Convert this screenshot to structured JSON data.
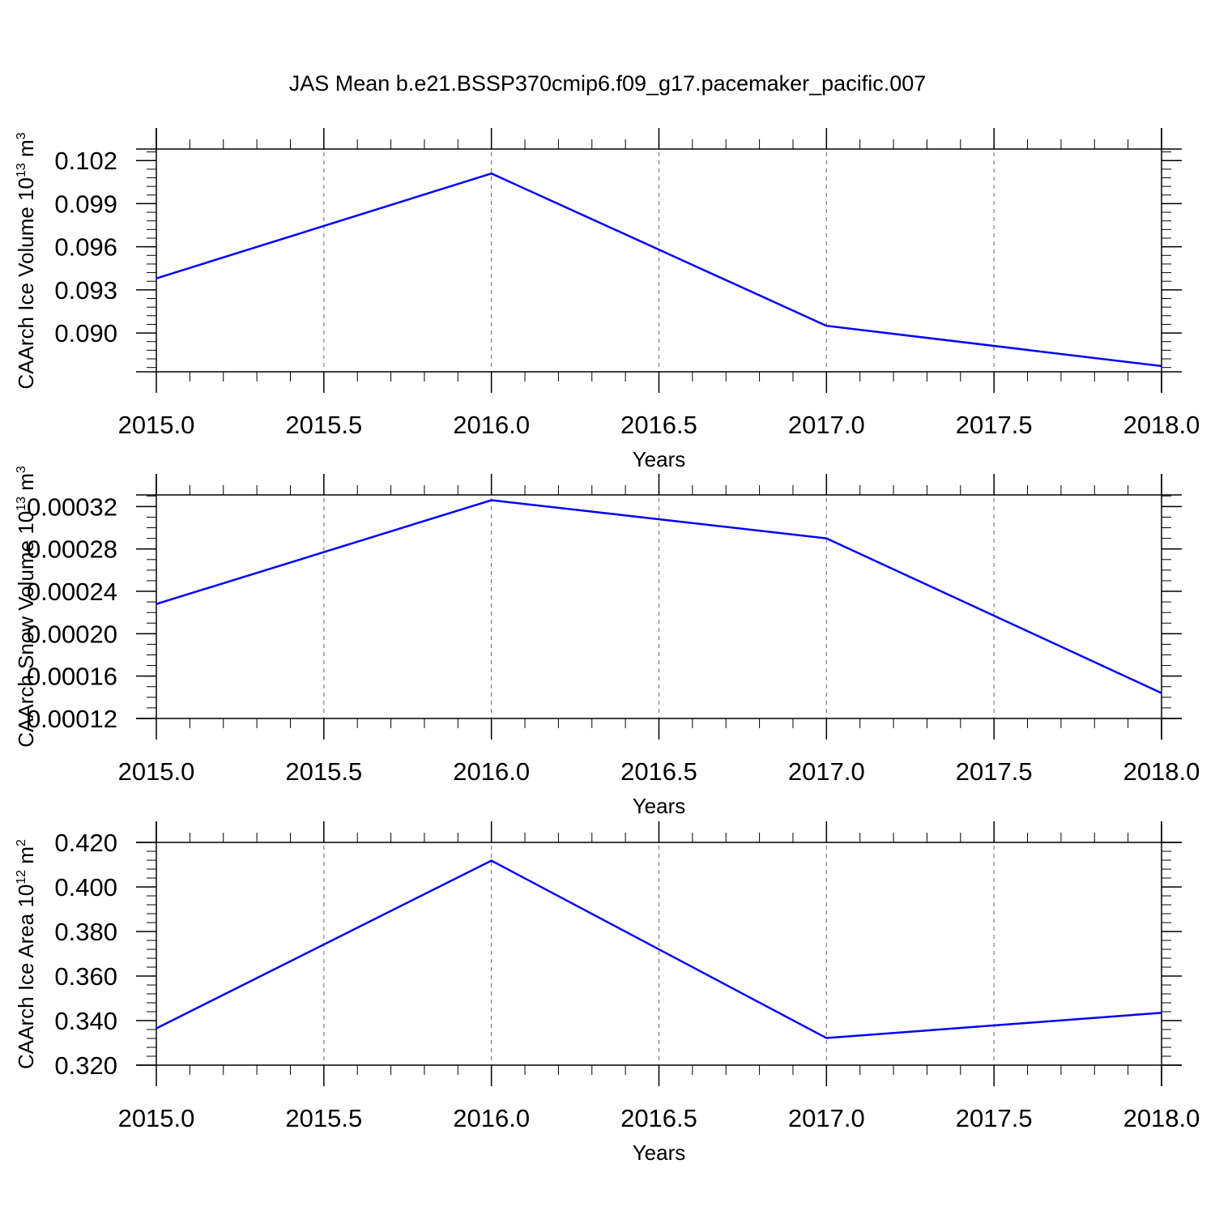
{
  "title": "JAS Mean b.e21.BSSP370cmip6.f09_g17.pacemaker_pacific.007",
  "colors": {
    "line": "#0000ff",
    "axis": "#000000",
    "grid": "#808080"
  },
  "chart_data": [
    {
      "type": "line",
      "ylabel": "CAArch Ice Volume 10",
      "ylabel_exponent": "13",
      "ylabel_unit": " m",
      "ylabel_unit_exponent": "3",
      "xlabel": "Years",
      "xlim": [
        2015.0,
        2018.0
      ],
      "ylim": [
        0.0873,
        0.1028
      ],
      "x_ticks": [
        "2015.0",
        "2015.5",
        "2016.0",
        "2016.5",
        "2017.0",
        "2017.5",
        "2018.0"
      ],
      "y_ticks": [
        "0.090",
        "0.093",
        "0.096",
        "0.099",
        "0.102"
      ],
      "grid": "vertical dashed",
      "series": [
        {
          "x": [
            2015,
            2016,
            2017,
            2018
          ],
          "values": [
            0.0938,
            0.1011,
            0.0905,
            0.0877
          ]
        }
      ]
    },
    {
      "type": "line",
      "ylabel": "CAArch Snow Volume 10",
      "ylabel_exponent": "13",
      "ylabel_unit": " m",
      "ylabel_unit_exponent": "3",
      "xlabel": "Years",
      "xlim": [
        2015.0,
        2018.0
      ],
      "ylim": [
        0.00012,
        0.000331
      ],
      "x_ticks": [
        "2015.0",
        "2015.5",
        "2016.0",
        "2016.5",
        "2017.0",
        "2017.5",
        "2018.0"
      ],
      "y_ticks": [
        "0.00012",
        "0.00016",
        "0.00020",
        "0.00024",
        "0.00028",
        "0.00032"
      ],
      "grid": "vertical dashed",
      "series": [
        {
          "x": [
            2015,
            2016,
            2017,
            2018
          ],
          "values": [
            0.000228,
            0.000326,
            0.00029,
            0.000144
          ]
        }
      ]
    },
    {
      "type": "line",
      "ylabel": "CAArch Ice Area 10",
      "ylabel_exponent": "12",
      "ylabel_unit": " m",
      "ylabel_unit_exponent": "2",
      "xlabel": "Years",
      "xlim": [
        2015.0,
        2018.0
      ],
      "ylim": [
        0.32,
        0.42
      ],
      "x_ticks": [
        "2015.0",
        "2015.5",
        "2016.0",
        "2016.5",
        "2017.0",
        "2017.5",
        "2018.0"
      ],
      "y_ticks": [
        "0.320",
        "0.340",
        "0.360",
        "0.380",
        "0.400",
        "0.420"
      ],
      "grid": "vertical dashed",
      "series": [
        {
          "x": [
            2015,
            2016,
            2017,
            2018
          ],
          "values": [
            0.3365,
            0.4118,
            0.3322,
            0.3435
          ]
        }
      ]
    }
  ]
}
